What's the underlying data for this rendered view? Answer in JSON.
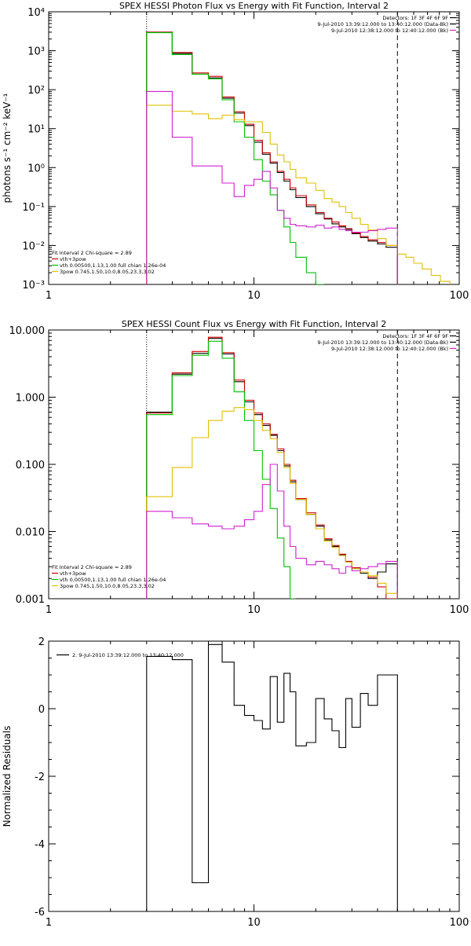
{
  "chart_data": [
    {
      "type": "line",
      "title": "SPEX HESSI Photon Flux vs Energy with Fit Function, Interval 2",
      "xlabel": "",
      "ylabel": "photons s⁻¹ cm⁻² keV⁻¹",
      "xscale": "log",
      "yscale": "log",
      "xlim": [
        1,
        100
      ],
      "ylim": [
        0.001,
        10000
      ],
      "xticks": [
        1,
        10,
        100
      ],
      "xtick_labels": [
        "1",
        "10",
        "100"
      ],
      "yticks": [
        0.001,
        0.01,
        0.1,
        1,
        10,
        100,
        1000,
        10000
      ],
      "ytick_labels": [
        "10⁻³",
        "10⁻²",
        "10⁻¹",
        "10⁰",
        "10¹",
        "10²",
        "10³",
        "10⁴"
      ],
      "vlines": [
        {
          "x": 3.0,
          "style": "dotted"
        },
        {
          "x": 50.0,
          "style": "dashed"
        }
      ],
      "info_lines": [
        {
          "text": "Detectors: 1F 3F 4F 6F 9F",
          "color": "#000000"
        },
        {
          "text": "9-Jul-2010 13:39:12.000 to 13:40:12.000 (Data-Bk)",
          "color": "#000000"
        },
        {
          "text": "9-Jul-2010 12:38:12.000 to 12:40:12.000 (Bk)",
          "color": "#d020d0"
        }
      ],
      "legend": {
        "placement": "bottom-left",
        "header": "Fit Interval 2   Chi-square = 2.89",
        "items": [
          {
            "text": "vth+3pow",
            "color": "#d00000"
          },
          {
            "text": "vth 0.00500,1.13,1.00  full chian 1.26e-04",
            "color": "#00c000"
          },
          {
            "text": "3pow 0.745,1.50,10.0,8.05,23.3,3.02",
            "color": "#e0c000"
          }
        ]
      },
      "edges": [
        3.0,
        4.0,
        5.0,
        6.0,
        7.0,
        8.0,
        9.0,
        10.0,
        11.0,
        12.0,
        13.0,
        14.0,
        15.0,
        16.0,
        18.0,
        20.0,
        22.0,
        24.0,
        26.0,
        28.0,
        30.0,
        33.0,
        36.0,
        40.0,
        44.0,
        50.0,
        55.0,
        60.0,
        66.0,
        73.0,
        81.0,
        90.0
      ],
      "series": [
        {
          "color": "#000000",
          "values": [
            3000,
            850,
            250,
            200,
            60,
            25,
            12,
            4.5,
            2.2,
            1.3,
            0.75,
            0.45,
            0.27,
            0.17,
            0.1,
            0.065,
            0.048,
            0.036,
            0.03,
            0.026,
            0.02,
            0.016,
            0.013,
            0.011,
            0.009,
            null,
            null,
            null,
            null,
            null,
            null
          ]
        },
        {
          "color": "#d00000",
          "values": [
            3000,
            900,
            270,
            220,
            65,
            27,
            13,
            5,
            2.4,
            1.4,
            0.8,
            0.5,
            0.3,
            0.19,
            0.11,
            0.07,
            0.05,
            0.04,
            0.032,
            0.027,
            0.021,
            0.017,
            0.014,
            0.012,
            0.01,
            null,
            null,
            null,
            null,
            null,
            null
          ]
        },
        {
          "color": "#00c000",
          "values": [
            2900,
            800,
            250,
            190,
            55,
            15,
            6,
            1.6,
            0.45,
            0.2,
            0.08,
            0.03,
            0.012,
            0.005,
            0.002,
            0.001,
            null,
            null,
            null,
            null,
            null,
            null,
            null,
            null,
            null,
            null,
            null,
            null,
            null,
            null,
            null
          ]
        },
        {
          "color": "#e0c000",
          "values": [
            40,
            28,
            24,
            18,
            22,
            17,
            15,
            15,
            8,
            4,
            2.1,
            1.4,
            0.9,
            0.55,
            0.4,
            0.26,
            0.16,
            0.13,
            0.1,
            0.07,
            0.05,
            0.035,
            0.025,
            0.015,
            0.01,
            0.006,
            0.005,
            0.0035,
            0.0025,
            0.0017,
            0.0012
          ]
        },
        {
          "color": "#d020d0",
          "values": [
            90,
            6,
            1.1,
            1.1,
            0.4,
            0.18,
            0.35,
            0.5,
            0.8,
            0.3,
            0.08,
            0.05,
            0.035,
            0.032,
            0.03,
            0.033,
            0.028,
            0.03,
            0.026,
            0.024,
            0.022,
            0.022,
            0.024,
            0.026,
            0.028,
            null,
            null,
            null,
            null,
            null,
            null
          ]
        }
      ]
    },
    {
      "type": "line",
      "title": "SPEX HESSI Count Flux vs Energy with Fit Function, Interval 2",
      "xlabel": "",
      "ylabel": "",
      "xscale": "log",
      "yscale": "log",
      "xlim": [
        1,
        100
      ],
      "ylim": [
        0.001,
        10
      ],
      "xticks": [
        1,
        10,
        100
      ],
      "xtick_labels": [
        "1",
        "10",
        "100"
      ],
      "yticks": [
        0.001,
        0.01,
        0.1,
        1,
        10
      ],
      "ytick_labels": [
        "0.001",
        "0.010",
        "0.100",
        "1.000",
        "10.000"
      ],
      "vlines": [
        {
          "x": 3.0,
          "style": "dotted"
        },
        {
          "x": 50.0,
          "style": "dashed"
        }
      ],
      "info_lines": [
        {
          "text": "Detectors: 1F 3F 4F 6F 9F",
          "color": "#000000"
        },
        {
          "text": "9-Jul-2010 13:39:12.000 to 13:40:12.000 (Data-Bk)",
          "color": "#000000"
        },
        {
          "text": "9-Jul-2010 12:38:12.000 to 12:40:12.000 (Bk)",
          "color": "#d020d0"
        }
      ],
      "legend": {
        "placement": "bottom-left",
        "header": "Fit Interval 2   Chi-square = 2.89",
        "items": [
          {
            "text": "vth+3pow",
            "color": "#d00000"
          },
          {
            "text": "vth 0.00500,1.13,1.00  full chian 1.26e-04",
            "color": "#00c000"
          },
          {
            "text": "3pow 0.745,1.50,10.0,8.05,23.3,3.02",
            "color": "#e0c000"
          }
        ]
      },
      "edges": [
        3.0,
        4.0,
        5.0,
        6.0,
        7.0,
        8.0,
        9.0,
        10.0,
        11.0,
        12.0,
        13.0,
        14.0,
        15.0,
        16.0,
        18.0,
        20.0,
        22.0,
        24.0,
        26.0,
        28.0,
        30.0,
        33.0,
        36.0,
        40.0,
        44.0,
        50.0
      ],
      "series": [
        {
          "color": "#000000",
          "values": [
            0.6,
            2.2,
            4.5,
            7.5,
            4.4,
            1.7,
            0.85,
            0.55,
            0.38,
            0.27,
            0.16,
            0.095,
            0.055,
            0.03,
            0.018,
            0.012,
            0.0075,
            0.006,
            0.0045,
            0.0035,
            0.0028,
            0.0024,
            0.002,
            0.0025,
            0.0033
          ]
        },
        {
          "color": "#d00000",
          "values": [
            0.58,
            2.3,
            4.8,
            7.8,
            4.6,
            1.8,
            0.9,
            0.58,
            0.4,
            0.28,
            0.17,
            0.1,
            0.058,
            0.031,
            0.019,
            0.0125,
            0.0078,
            0.0062,
            0.0046,
            0.0036,
            0.0029,
            0.0025,
            0.0021,
            0.0015,
            0.001
          ]
        },
        {
          "color": "#00c000",
          "values": [
            0.55,
            2.1,
            4.2,
            6.8,
            3.8,
            1.2,
            0.45,
            0.16,
            0.06,
            0.022,
            0.008,
            0.003,
            0.001,
            null,
            null,
            null,
            null,
            null,
            null,
            null,
            null,
            null,
            null,
            null,
            null
          ]
        },
        {
          "color": "#e0c000",
          "values": [
            0.033,
            0.09,
            0.25,
            0.45,
            0.62,
            0.7,
            0.65,
            0.45,
            0.32,
            0.24,
            0.15,
            0.09,
            0.052,
            0.03,
            0.018,
            0.011,
            0.0072,
            0.0058,
            0.0044,
            0.0035,
            0.0028,
            0.0025,
            0.0022,
            0.0017,
            0.0012
          ]
        },
        {
          "color": "#d020d0",
          "values": [
            0.02,
            0.016,
            0.013,
            0.012,
            0.011,
            0.012,
            0.015,
            0.02,
            0.05,
            0.1,
            0.04,
            0.012,
            0.006,
            0.004,
            0.0032,
            0.0036,
            0.0032,
            0.0028,
            0.0024,
            0.003,
            0.0026,
            0.0028,
            0.003,
            0.0033,
            0.0036
          ]
        }
      ]
    },
    {
      "type": "line",
      "title": "",
      "xlabel": "",
      "ylabel": "Normalized Residuals",
      "xscale": "log",
      "yscale": "linear",
      "xlim": [
        1,
        100
      ],
      "ylim": [
        -6,
        2
      ],
      "xticks": [
        1,
        10,
        100
      ],
      "xtick_labels": [
        "1",
        "10",
        "100"
      ],
      "yticks": [
        -6,
        -4,
        -2,
        0,
        2
      ],
      "ytick_labels": [
        "-6",
        "-4",
        "-2",
        "0",
        "2"
      ],
      "legend": {
        "placement": "top-left",
        "header": "",
        "items": [
          {
            "text": "2. 9-Jul-2010 13:39:12.000 to 13:40:12.000",
            "color": "#000000"
          }
        ]
      },
      "edges": [
        3.0,
        4.0,
        5.0,
        6.0,
        7.0,
        8.0,
        9.0,
        10.0,
        11.0,
        12.0,
        13.0,
        14.0,
        15.0,
        16.0,
        18.0,
        20.0,
        22.0,
        24.0,
        26.0,
        28.0,
        30.0,
        33.0,
        36.0,
        40.0,
        44.0,
        50.0
      ],
      "series": [
        {
          "color": "#000000",
          "values": [
            1.55,
            1.45,
            -5.15,
            1.9,
            1.38,
            0.1,
            -0.2,
            -0.35,
            -0.6,
            0.95,
            -0.4,
            1.05,
            0.5,
            -1.1,
            -1.0,
            0.3,
            -0.3,
            -0.65,
            -1.15,
            0.3,
            -0.55,
            0.45,
            0.1,
            1.0,
            1.0
          ]
        }
      ]
    }
  ]
}
